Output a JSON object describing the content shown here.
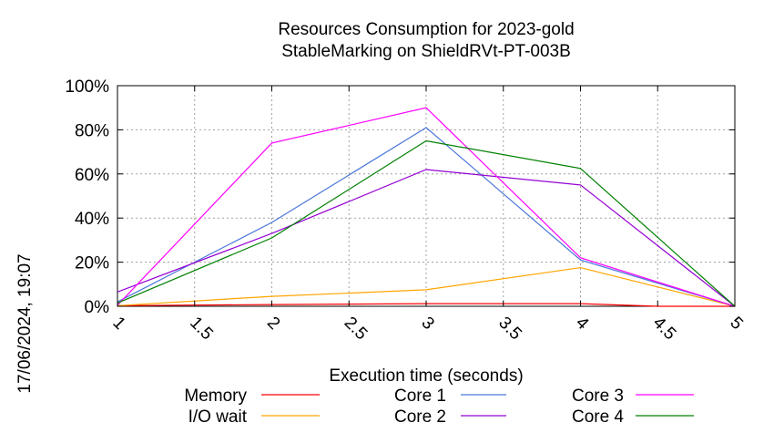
{
  "chart_data": {
    "type": "line",
    "title": [
      "Resources Consumption for 2023-gold",
      "StableMarking on ShieldRVt-PT-003B"
    ],
    "xlabel": "Execution time (seconds)",
    "ylabel": "",
    "xlim": [
      1,
      5
    ],
    "ylim": [
      0,
      100
    ],
    "x_ticks": [
      "1",
      "1.5",
      "2",
      "2.5",
      "3",
      "3.5",
      "4",
      "4.5",
      "5"
    ],
    "y_ticks": [
      "0%",
      "20%",
      "40%",
      "60%",
      "80%",
      "100%"
    ],
    "grid": true,
    "legend_position": "bottom",
    "side_stamp": "17/06/2024, 19:07",
    "series": [
      {
        "name": "Memory",
        "color": "#ff0000",
        "x": [
          1,
          2,
          3,
          4,
          4.5,
          5
        ],
        "values": [
          0.3,
          0.8,
          1.2,
          1.2,
          0,
          0
        ]
      },
      {
        "name": "I/O wait",
        "color": "#ffa500",
        "x": [
          1,
          2,
          3,
          4,
          5
        ],
        "values": [
          0.3,
          4.5,
          7.5,
          17.5,
          0
        ]
      },
      {
        "name": "Core 1",
        "color": "#4a76d9",
        "x": [
          1,
          2,
          3,
          4,
          5
        ],
        "values": [
          2,
          38,
          81,
          21,
          0
        ]
      },
      {
        "name": "Core 2",
        "color": "#9400d3",
        "x": [
          1,
          2,
          3,
          4,
          5
        ],
        "values": [
          6.5,
          33,
          62,
          55,
          0
        ]
      },
      {
        "name": "Core 3",
        "color": "#ff00ff",
        "x": [
          1,
          2,
          3,
          4,
          5
        ],
        "values": [
          0.5,
          74,
          90,
          22,
          0
        ]
      },
      {
        "name": "Core 4",
        "color": "#008000",
        "x": [
          1,
          2,
          3,
          4,
          5
        ],
        "values": [
          1.5,
          31,
          75,
          62.5,
          0
        ]
      }
    ]
  }
}
